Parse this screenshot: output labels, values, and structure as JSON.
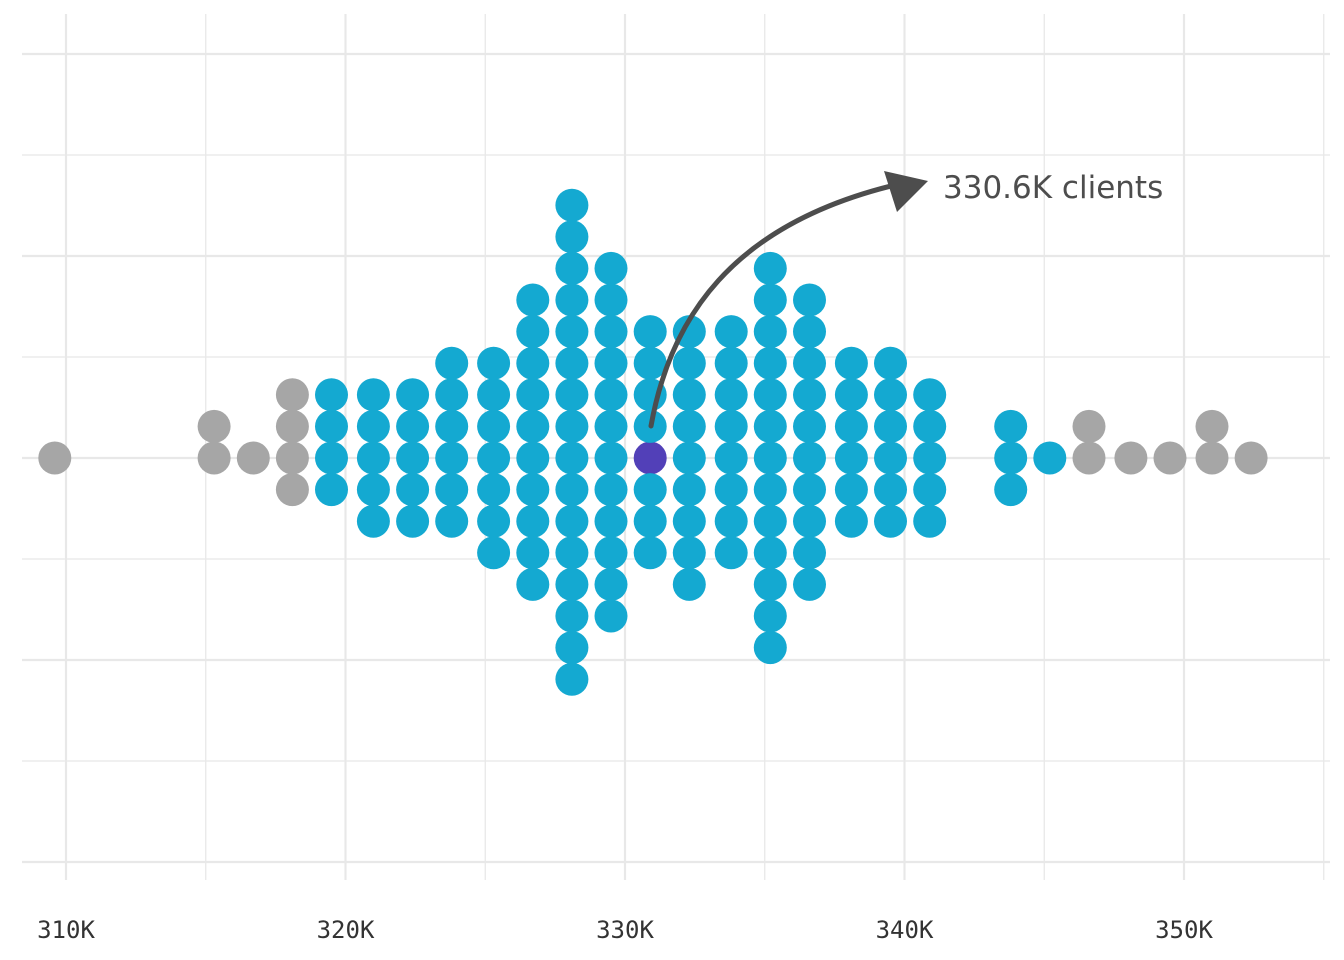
{
  "chart_data": {
    "type": "scatter",
    "subtype": "beeswarm-dot-plot",
    "title": "",
    "xlabel": "",
    "ylabel": "",
    "xlim": [
      309000,
      355500
    ],
    "x_ticks": [
      310000,
      320000,
      330000,
      340000,
      350000
    ],
    "x_tick_labels": [
      "310K",
      "320K",
      "330K",
      "340K",
      "350K"
    ],
    "grid": true,
    "colors": {
      "main": "#14a9d1",
      "outlier": "#a6a6a6",
      "highlight": "#5240b8",
      "grid": "#e8e8e8",
      "annotation": "#4d4d4d"
    },
    "columns": [
      {
        "x": 309600,
        "count": 1,
        "group": "outlier"
      },
      {
        "x": 315300,
        "count": 2,
        "group": "outlier"
      },
      {
        "x": 316700,
        "count": 1,
        "group": "outlier"
      },
      {
        "x": 318100,
        "count": 4,
        "group": "outlier"
      },
      {
        "x": 319500,
        "count": 4,
        "group": "main"
      },
      {
        "x": 321000,
        "count": 5,
        "group": "main"
      },
      {
        "x": 322400,
        "count": 5,
        "group": "main"
      },
      {
        "x": 323800,
        "count": 6,
        "group": "main"
      },
      {
        "x": 325300,
        "count": 7,
        "group": "main"
      },
      {
        "x": 326700,
        "count": 10,
        "group": "main"
      },
      {
        "x": 328100,
        "count": 16,
        "group": "main"
      },
      {
        "x": 329500,
        "count": 12,
        "group": "main"
      },
      {
        "x": 330900,
        "count": 8,
        "group": "main",
        "highlight_index": 0
      },
      {
        "x": 332300,
        "count": 9,
        "group": "main"
      },
      {
        "x": 333800,
        "count": 8,
        "group": "main"
      },
      {
        "x": 335200,
        "count": 13,
        "group": "main"
      },
      {
        "x": 336600,
        "count": 10,
        "group": "main"
      },
      {
        "x": 338100,
        "count": 6,
        "group": "main"
      },
      {
        "x": 339500,
        "count": 6,
        "group": "main"
      },
      {
        "x": 340900,
        "count": 5,
        "group": "main"
      },
      {
        "x": 343800,
        "count": 3,
        "group": "main"
      },
      {
        "x": 345200,
        "count": 1,
        "group": "main"
      },
      {
        "x": 346600,
        "count": 2,
        "group": "outlier"
      },
      {
        "x": 348100,
        "count": 1,
        "group": "outlier"
      },
      {
        "x": 349500,
        "count": 1,
        "group": "outlier"
      },
      {
        "x": 351000,
        "count": 2,
        "group": "outlier"
      },
      {
        "x": 352400,
        "count": 1,
        "group": "outlier"
      }
    ],
    "annotation": {
      "text": "330.6K clients",
      "points_to_x": 330900
    }
  }
}
